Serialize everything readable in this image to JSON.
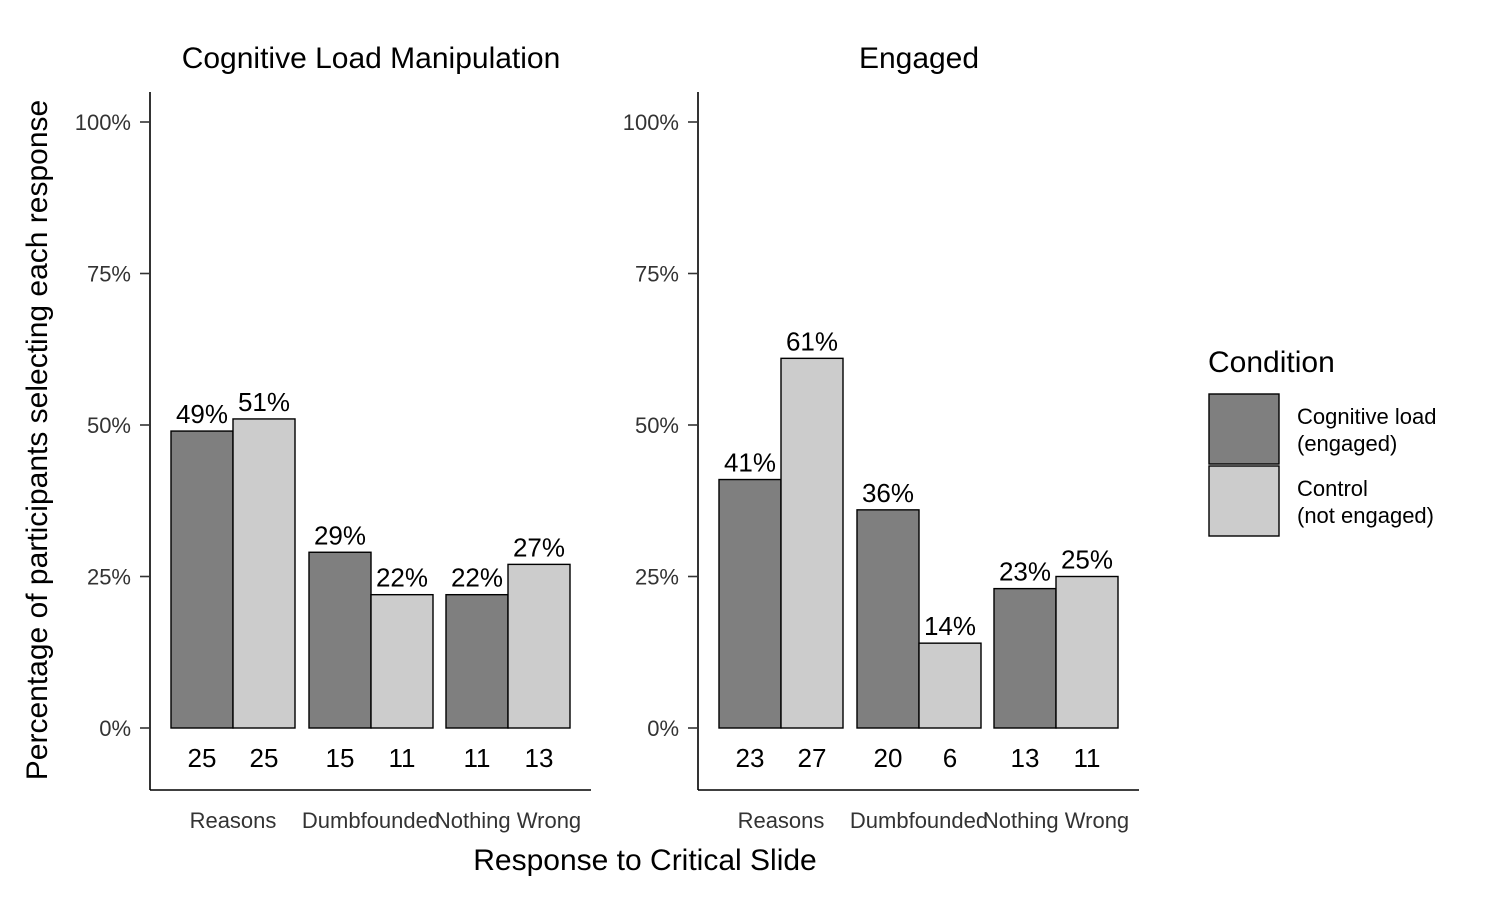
{
  "chart_data": {
    "type": "bar",
    "xlabel": "Response to Critical Slide",
    "ylabel": "Percentage of participants selecting each response",
    "ylim": [
      0,
      100
    ],
    "yticks": [
      "0%",
      "25%",
      "50%",
      "75%",
      "100%"
    ],
    "ytick_values": [
      0,
      25,
      50,
      75,
      100
    ],
    "categories": [
      "Reasons",
      "Dumbfounded",
      "Nothing Wrong"
    ],
    "legend": {
      "title": "Condition",
      "position": "right",
      "entries": [
        {
          "line1": "Cognitive load",
          "line2": "(engaged)",
          "color": "#7f7f7f"
        },
        {
          "line1": "Control",
          "line2": "(not engaged)",
          "color": "#cccccc"
        }
      ]
    },
    "panels": [
      {
        "title": "Cognitive Load Manipulation",
        "series": [
          {
            "values": [
              49,
              29,
              22
            ],
            "labels": [
              "49%",
              "29%",
              "22%"
            ],
            "counts": [
              "25",
              "15",
              "11"
            ]
          },
          {
            "values": [
              51,
              22,
              27
            ],
            "labels": [
              "51%",
              "22%",
              "27%"
            ],
            "counts": [
              "25",
              "11",
              "13"
            ]
          }
        ]
      },
      {
        "title": "Engaged",
        "series": [
          {
            "values": [
              41,
              36,
              23
            ],
            "labels": [
              "41%",
              "36%",
              "23%"
            ],
            "counts": [
              "23",
              "20",
              "13"
            ]
          },
          {
            "values": [
              61,
              14,
              25
            ],
            "labels": [
              "61%",
              "14%",
              "25%"
            ],
            "counts": [
              "27",
              "6",
              "11"
            ]
          }
        ]
      }
    ]
  }
}
